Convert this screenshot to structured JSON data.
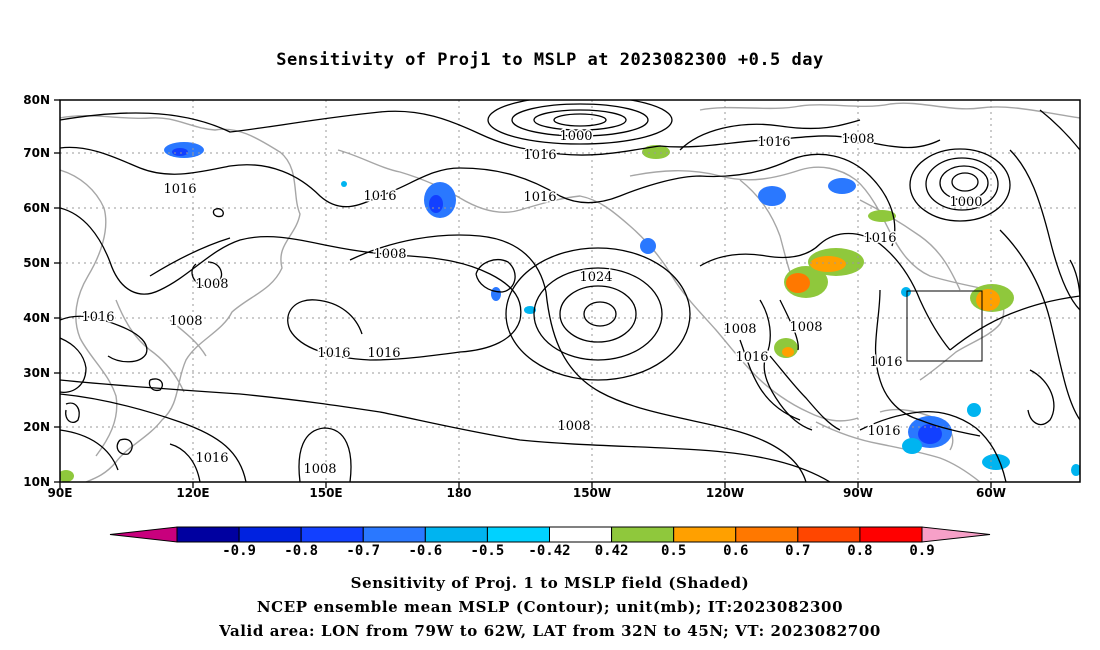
{
  "title": "Sensitivity of Proj1 to MSLP at 2023082300 +0.5 day",
  "map": {
    "lat_labels": [
      "80N",
      "70N",
      "60N",
      "50N",
      "40N",
      "30N",
      "20N",
      "10N"
    ],
    "lon_labels": [
      "90E",
      "120E",
      "150E",
      "180",
      "150W",
      "120W",
      "90W",
      "60W"
    ],
    "contour_labels": [
      "1000",
      "1016",
      "1016",
      "1008",
      "1016",
      "1000",
      "1016",
      "1016",
      "1016",
      "1008",
      "1008",
      "1024",
      "1016",
      "1008",
      "1008",
      "1008",
      "1016",
      "1016",
      "1016",
      "1016",
      "1008",
      "1016",
      "1016",
      "1008",
      "1008",
      "1008"
    ],
    "valid_box_lon": [
      -79,
      -62
    ],
    "valid_box_lat": [
      32,
      45
    ],
    "shaded_field": "Sensitivity of Proj. 1 to MSLP field",
    "contour_field": "NCEP ensemble mean MSLP",
    "unit": "mb"
  },
  "colorbar": {
    "ticks": [
      "-0.9",
      "-0.8",
      "-0.7",
      "-0.6",
      "-0.5",
      "-0.42",
      "0.42",
      "0.5",
      "0.6",
      "0.7",
      "0.8",
      "0.9"
    ],
    "colors": [
      "#c8007d",
      "#0000a0",
      "#0022e0",
      "#1240ff",
      "#2a78ff",
      "#00b4f0",
      "#00d2ff",
      "#ffffff",
      "#8fc83c",
      "#ffa000",
      "#ff7800",
      "#ff4600",
      "#ff0000",
      "#f7a0c8"
    ]
  },
  "captions": [
    "Sensitivity of Proj. 1 to MSLP field (Shaded)",
    "NCEP ensemble mean MSLP (Contour); unit(mb); IT:2023082300",
    "Valid area: LON from 79W to 62W, LAT from 32N to 45N; VT: 2023082700"
  ]
}
